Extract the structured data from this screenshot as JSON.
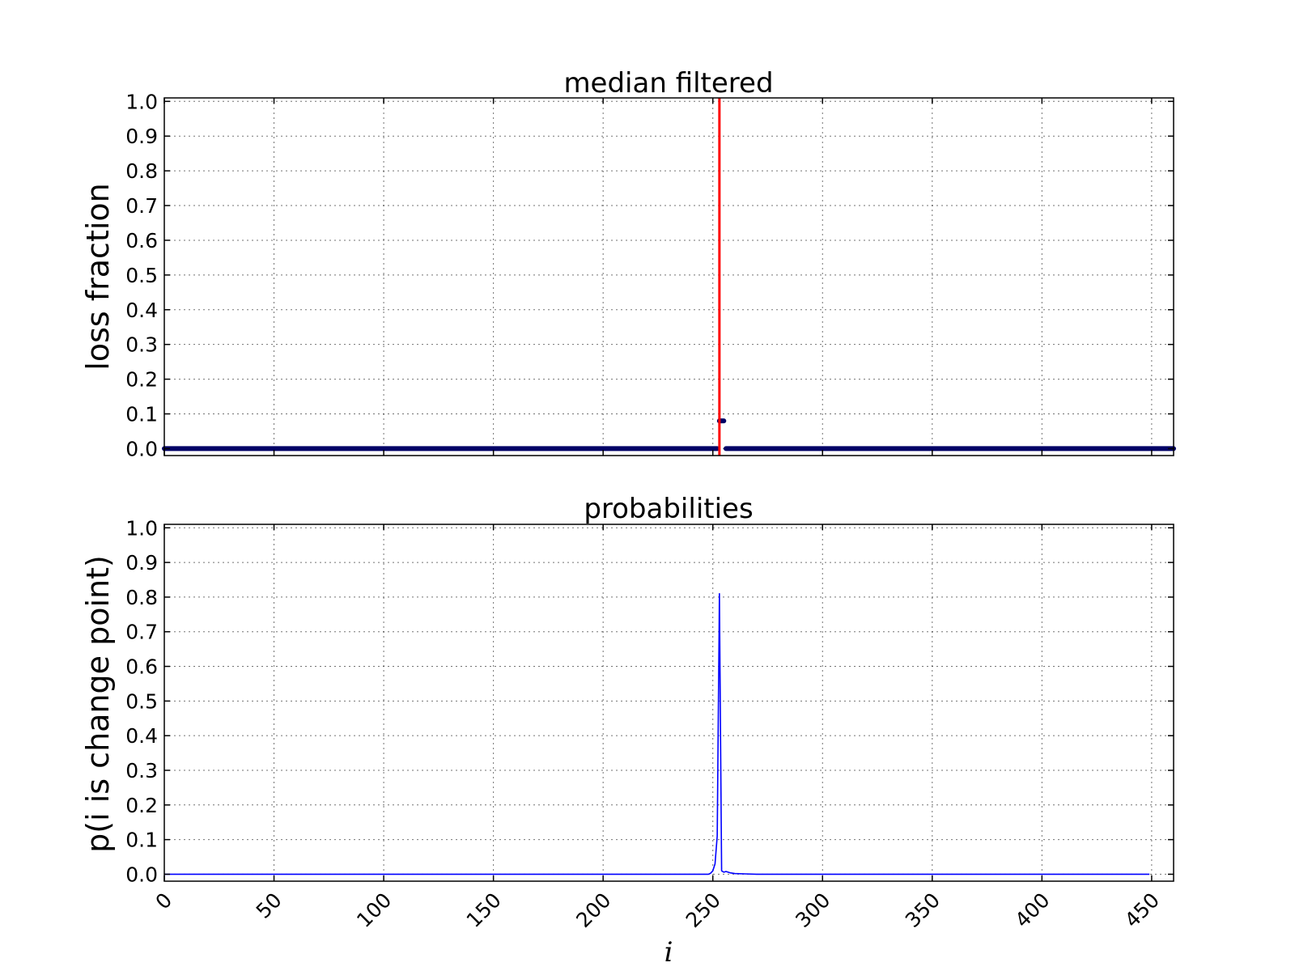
{
  "chart_data": [
    {
      "type": "scatter",
      "title": "median filtered",
      "ylabel": "loss fraction",
      "xlim": [
        0,
        460
      ],
      "ylim": [
        -0.02,
        1.01
      ],
      "yticks": [
        "0.0",
        "0.1",
        "0.2",
        "0.3",
        "0.4",
        "0.5",
        "0.6",
        "0.7",
        "0.8",
        "0.9",
        "1.0"
      ],
      "xticks": [
        "0",
        "50",
        "100",
        "150",
        "200",
        "250",
        "300",
        "350",
        "400",
        "450"
      ],
      "grid": true,
      "series": [
        {
          "color": "#000066",
          "points": [
            [
              0,
              0
            ],
            [
              252,
              0
            ],
            [
              253,
              0.08
            ],
            [
              254,
              0.08
            ],
            [
              255,
              0.08
            ],
            [
              256,
              0
            ],
            [
              460,
              0
            ]
          ],
          "segments": [
            {
              "x_from": 0,
              "x_to": 252,
              "y": 0
            },
            {
              "x_from": 253,
              "x_to": 255,
              "y": 0.08
            },
            {
              "x_from": 256,
              "x_to": 460,
              "y": 0
            }
          ]
        }
      ],
      "vline": {
        "x": 253,
        "color": "#ff0000"
      }
    },
    {
      "type": "line",
      "title": "probabilities",
      "ylabel": "p(i is change point)",
      "xlabel": "i",
      "xlim": [
        0,
        460
      ],
      "ylim": [
        -0.02,
        1.01
      ],
      "yticks": [
        "0.0",
        "0.1",
        "0.2",
        "0.3",
        "0.4",
        "0.5",
        "0.6",
        "0.7",
        "0.8",
        "0.9",
        "1.0"
      ],
      "xticks": [
        "0",
        "50",
        "100",
        "150",
        "200",
        "250",
        "300",
        "350",
        "400",
        "450"
      ],
      "grid": true,
      "series": [
        {
          "color": "#0000ff",
          "x": [
            0,
            248,
            249,
            250,
            251,
            252,
            253,
            254,
            255,
            256,
            257,
            258,
            260,
            265,
            270,
            300,
            449
          ],
          "y": [
            0.0,
            0.0,
            0.003,
            0.01,
            0.03,
            0.11,
            0.81,
            0.01,
            0.006,
            0.008,
            0.006,
            0.004,
            0.002,
            0.001,
            0.0,
            0.0,
            0.0
          ]
        }
      ]
    }
  ]
}
